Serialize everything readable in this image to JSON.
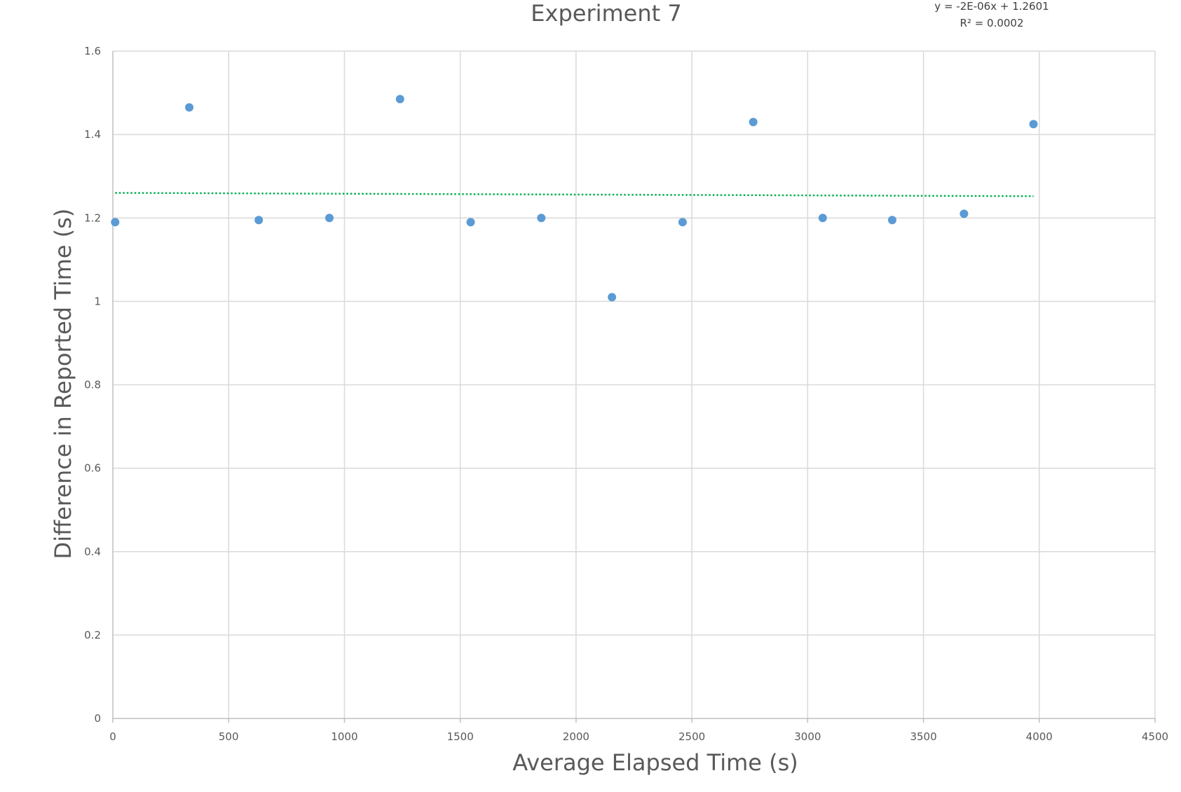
{
  "chart_data": {
    "type": "scatter",
    "title": "Experiment 7",
    "xlabel": "Average Elapsed Time (s)",
    "ylabel": "Difference in Reported Time (s)",
    "xlim": [
      0,
      4500
    ],
    "ylim": [
      0,
      1.6
    ],
    "x_ticks": [
      "0",
      "500",
      "1000",
      "1500",
      "2000",
      "2500",
      "3000",
      "3500",
      "4000",
      "4500"
    ],
    "y_ticks": [
      "0",
      "0.2",
      "0.4",
      "0.6",
      "0.8",
      "1",
      "1.2",
      "1.4",
      "1.6"
    ],
    "grid": true,
    "series": [
      {
        "color": "#5b9bd5",
        "x": [
          10,
          330,
          630,
          935,
          1240,
          1545,
          1850,
          2155,
          2460,
          2765,
          3065,
          3365,
          3675,
          3975
        ],
        "y": [
          1.19,
          1.465,
          1.195,
          1.2,
          1.485,
          1.19,
          1.2,
          1.01,
          1.19,
          1.43,
          1.2,
          1.195,
          1.21,
          1.425
        ]
      }
    ],
    "trendline": {
      "type": "linear",
      "slope": -2e-06,
      "intercept": 1.2601,
      "x_range": [
        10,
        3975
      ],
      "color": "#00b050",
      "equation": "y = -2E-06x + 1.2601",
      "r_squared": "R² = 0.0002"
    },
    "colors": {
      "grid": "#d9d9d9",
      "axis": "#bfbfbf",
      "text": "#595959"
    }
  }
}
